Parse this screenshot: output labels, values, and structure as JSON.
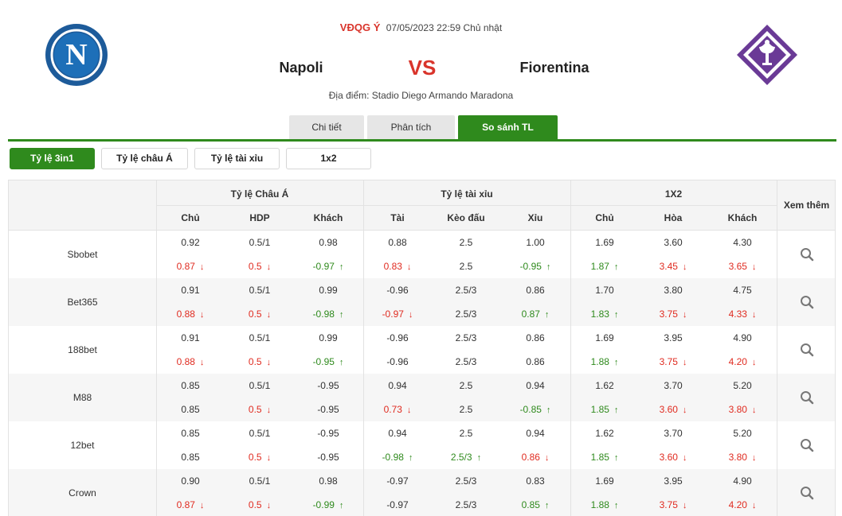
{
  "match": {
    "league": "VĐQG Ý",
    "datetime": "07/05/2023 22:59 Chủ nhật",
    "home": "Napoli",
    "vs": "VS",
    "away": "Fiorentina",
    "venue": "Địa điểm: Stadio Diego Armando Maradona",
    "home_logo_letter": "N"
  },
  "tabs": [
    "Chi tiết",
    "Phân tích",
    "So sánh TL"
  ],
  "active_tab": 2,
  "subtabs": [
    "Tỷ lệ 3in1",
    "Tỷ lệ châu Á",
    "Tỷ lệ tài xỉu",
    "1x2"
  ],
  "active_subtab": 0,
  "colors": {
    "accent": "#2f8a1d",
    "down": "#e02b20",
    "up": "#2f8a1d",
    "vs": "#d9342b"
  },
  "table": {
    "groups": [
      "Tỷ lệ Châu Á",
      "Tỷ lệ tài xỉu",
      "1X2"
    ],
    "columns": [
      "Chủ",
      "HDP",
      "Khách",
      "Tài",
      "Kèo đấu",
      "Xỉu",
      "Chủ",
      "Hòa",
      "Khách"
    ],
    "more_label": "Xem thêm",
    "rows": [
      {
        "bookmaker": "Sbobet",
        "open": [
          "0.92",
          "0.5/1",
          "0.98",
          "0.88",
          "2.5",
          "1.00",
          "1.69",
          "3.60",
          "4.30"
        ],
        "live": [
          [
            "0.87",
            "down"
          ],
          [
            "0.5",
            "down"
          ],
          [
            "-0.97",
            "up"
          ],
          [
            "0.83",
            "down"
          ],
          [
            "2.5",
            ""
          ],
          [
            "-0.95",
            "up"
          ],
          [
            "1.87",
            "up"
          ],
          [
            "3.45",
            "down"
          ],
          [
            "3.65",
            "down"
          ]
        ]
      },
      {
        "bookmaker": "Bet365",
        "open": [
          "0.91",
          "0.5/1",
          "0.99",
          "-0.96",
          "2.5/3",
          "0.86",
          "1.70",
          "3.80",
          "4.75"
        ],
        "live": [
          [
            "0.88",
            "down"
          ],
          [
            "0.5",
            "down"
          ],
          [
            "-0.98",
            "up"
          ],
          [
            "-0.97",
            "down"
          ],
          [
            "2.5/3",
            ""
          ],
          [
            "0.87",
            "up"
          ],
          [
            "1.83",
            "up"
          ],
          [
            "3.75",
            "down"
          ],
          [
            "4.33",
            "down"
          ]
        ]
      },
      {
        "bookmaker": "188bet",
        "open": [
          "0.91",
          "0.5/1",
          "0.99",
          "-0.96",
          "2.5/3",
          "0.86",
          "1.69",
          "3.95",
          "4.90"
        ],
        "live": [
          [
            "0.88",
            "down"
          ],
          [
            "0.5",
            "down"
          ],
          [
            "-0.95",
            "up"
          ],
          [
            "-0.96",
            ""
          ],
          [
            "2.5/3",
            ""
          ],
          [
            "0.86",
            ""
          ],
          [
            "1.88",
            "up"
          ],
          [
            "3.75",
            "down"
          ],
          [
            "4.20",
            "down"
          ]
        ]
      },
      {
        "bookmaker": "M88",
        "open": [
          "0.85",
          "0.5/1",
          "-0.95",
          "0.94",
          "2.5",
          "0.94",
          "1.62",
          "3.70",
          "5.20"
        ],
        "live": [
          [
            "0.85",
            ""
          ],
          [
            "0.5",
            "down"
          ],
          [
            "-0.95",
            ""
          ],
          [
            "0.73",
            "down"
          ],
          [
            "2.5",
            ""
          ],
          [
            "-0.85",
            "up"
          ],
          [
            "1.85",
            "up"
          ],
          [
            "3.60",
            "down"
          ],
          [
            "3.80",
            "down"
          ]
        ]
      },
      {
        "bookmaker": "12bet",
        "open": [
          "0.85",
          "0.5/1",
          "-0.95",
          "0.94",
          "2.5",
          "0.94",
          "1.62",
          "3.70",
          "5.20"
        ],
        "live": [
          [
            "0.85",
            ""
          ],
          [
            "0.5",
            "down"
          ],
          [
            "-0.95",
            ""
          ],
          [
            "-0.98",
            "up"
          ],
          [
            "2.5/3",
            "up"
          ],
          [
            "0.86",
            "down"
          ],
          [
            "1.85",
            "up"
          ],
          [
            "3.60",
            "down"
          ],
          [
            "3.80",
            "down"
          ]
        ]
      },
      {
        "bookmaker": "Crown",
        "open": [
          "0.90",
          "0.5/1",
          "0.98",
          "-0.97",
          "2.5/3",
          "0.83",
          "1.69",
          "3.95",
          "4.90"
        ],
        "live": [
          [
            "0.87",
            "down"
          ],
          [
            "0.5",
            "down"
          ],
          [
            "-0.99",
            "up"
          ],
          [
            "-0.97",
            ""
          ],
          [
            "2.5/3",
            ""
          ],
          [
            "0.85",
            "up"
          ],
          [
            "1.88",
            "up"
          ],
          [
            "3.75",
            "down"
          ],
          [
            "4.20",
            "down"
          ]
        ]
      }
    ]
  }
}
